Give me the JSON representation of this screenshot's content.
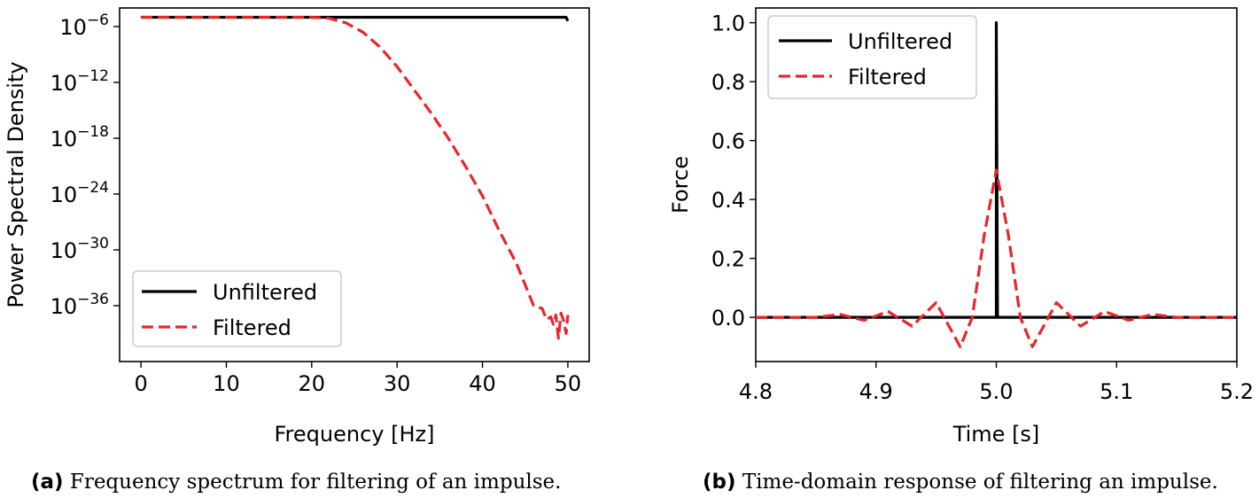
{
  "chart_data": [
    {
      "type": "line",
      "xlabel": "Frequency [Hz]",
      "ylabel": "Power Spectral Density",
      "xlim": [
        -2.5,
        52.5
      ],
      "yscale": "log",
      "ylim_exponent": [
        -42,
        -4
      ],
      "xticks": [
        0,
        10,
        20,
        30,
        40,
        50
      ],
      "yticks_exponent": [
        -6,
        -12,
        -18,
        -24,
        -30,
        -36
      ],
      "ytick_labels": [
        "10",
        "10",
        "10",
        "10",
        "10",
        "10"
      ],
      "ytick_exponent_labels": [
        "−6",
        "−12",
        "−18",
        "−24",
        "−30",
        "−36"
      ],
      "legend": {
        "position": "lower-left",
        "entries": [
          "Unfiltered",
          "Filtered"
        ]
      },
      "grid": false,
      "series": [
        {
          "name": "Unfiltered",
          "color": "#000000",
          "style": "solid",
          "x": [
            0,
            10,
            20,
            30,
            40,
            49.8,
            50
          ],
          "log10_y": [
            -5,
            -5,
            -5,
            -5,
            -5,
            -5,
            -5.4
          ]
        },
        {
          "name": "Filtered",
          "color": "#e8262b",
          "style": "dashed",
          "x": [
            0,
            10,
            20,
            22,
            24,
            26,
            28,
            30,
            32,
            34,
            36,
            38,
            40,
            42,
            44,
            46,
            47,
            47.5,
            48,
            48.3,
            48.6,
            48.9,
            49.2,
            49.5,
            49.8,
            50
          ],
          "log10_y": [
            -5,
            -5,
            -5,
            -5.1,
            -5.6,
            -6.6,
            -8.2,
            -10.3,
            -12.8,
            -15.3,
            -18,
            -21,
            -24.2,
            -28,
            -31.5,
            -36,
            -36.3,
            -37.5,
            -37.2,
            -38,
            -37,
            -39.5,
            -36.8,
            -37.6,
            -39,
            -37
          ]
        }
      ]
    },
    {
      "type": "line",
      "xlabel": "Time [s]",
      "ylabel": "Force",
      "xlim": [
        4.8,
        5.2
      ],
      "ylim": [
        -0.15,
        1.05
      ],
      "xticks": [
        4.8,
        4.9,
        5.0,
        5.1,
        5.2
      ],
      "xtick_labels": [
        "4.8",
        "4.9",
        "5.0",
        "5.1",
        "5.2"
      ],
      "yticks": [
        0.0,
        0.2,
        0.4,
        0.6,
        0.8,
        1.0
      ],
      "ytick_labels": [
        "0.0",
        "0.2",
        "0.4",
        "0.6",
        "0.8",
        "1.0"
      ],
      "legend": {
        "position": "upper-left",
        "entries": [
          "Unfiltered",
          "Filtered"
        ]
      },
      "grid": false,
      "series": [
        {
          "name": "Unfiltered",
          "color": "#000000",
          "style": "solid",
          "x": [
            4.8,
            4.999,
            5.0,
            5.0,
            5.001,
            5.2
          ],
          "y": [
            0,
            0,
            0,
            1.0,
            0,
            0
          ]
        },
        {
          "name": "Filtered",
          "color": "#e8262b",
          "style": "dashed",
          "x": [
            4.8,
            4.85,
            4.87,
            4.89,
            4.91,
            4.93,
            4.95,
            4.97,
            4.98,
            4.99,
            5.0,
            5.01,
            5.02,
            5.03,
            5.05,
            5.07,
            5.09,
            5.11,
            5.13,
            5.15,
            5.2
          ],
          "y": [
            0,
            0,
            0.01,
            -0.01,
            0.02,
            -0.03,
            0.05,
            -0.1,
            0.0,
            0.28,
            0.5,
            0.28,
            0.0,
            -0.1,
            0.05,
            -0.03,
            0.02,
            -0.01,
            0.01,
            0,
            0
          ]
        }
      ]
    }
  ],
  "captions": [
    {
      "label": "(a)",
      "text": "Frequency spectrum for filtering of an impulse."
    },
    {
      "label": "(b)",
      "text": "Time-domain response of filtering an impulse."
    }
  ]
}
